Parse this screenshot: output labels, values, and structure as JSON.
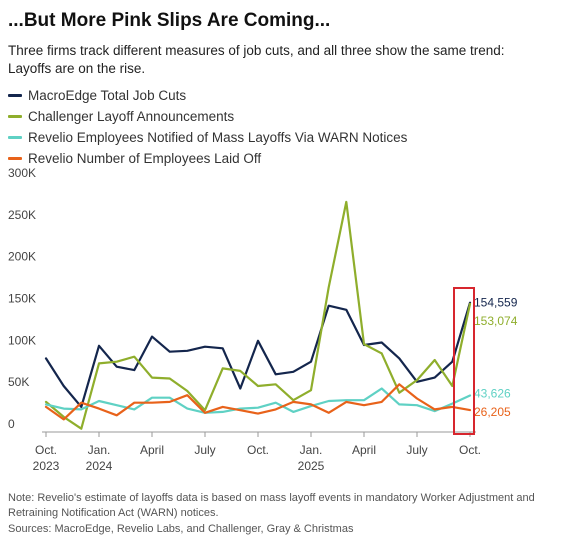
{
  "title": "...But More Pink Slips Are Coming...",
  "subtitle": "Three firms track different measures of job cuts, and all three show the same trend: Layoffs are on the rise.",
  "footnote": "Note: Revelio's estimate of layoffs data is based on mass layoff events in mandatory Worker Adjustment and Retraining Notification Act (WARN) notices.",
  "sources": "Sources: MacroEdge, Revelio Labs, and Challenger, Gray & Christmas",
  "chart_data": {
    "type": "line",
    "x": [
      "2023-10",
      "2023-11",
      "2023-12",
      "2024-01",
      "2024-02",
      "2024-03",
      "2024-04",
      "2024-05",
      "2024-06",
      "2024-07",
      "2024-08",
      "2024-09",
      "2024-10",
      "2024-11",
      "2024-12",
      "2025-01",
      "2025-02",
      "2025-03",
      "2025-04",
      "2025-05",
      "2025-06",
      "2025-07",
      "2025-08",
      "2025-09",
      "2025-10"
    ],
    "ylim": [
      0,
      300000
    ],
    "yticks": [
      0,
      50000,
      100000,
      150000,
      200000,
      250000,
      300000
    ],
    "ytick_labels": [
      "0",
      "50K",
      "100K",
      "150K",
      "200K",
      "250K",
      "300K"
    ],
    "xticks": [
      {
        "x": "2023-10",
        "lines": [
          "Oct.",
          "2023"
        ]
      },
      {
        "x": "2024-01",
        "lines": [
          "Jan.",
          "2024"
        ]
      },
      {
        "x": "2024-04",
        "lines": [
          "April"
        ]
      },
      {
        "x": "2024-07",
        "lines": [
          "July"
        ]
      },
      {
        "x": "2024-10",
        "lines": [
          "Oct."
        ]
      },
      {
        "x": "2025-01",
        "lines": [
          "Jan.",
          "2025"
        ]
      },
      {
        "x": "2025-04",
        "lines": [
          "April"
        ]
      },
      {
        "x": "2025-07",
        "lines": [
          "July"
        ]
      },
      {
        "x": "2025-10",
        "lines": [
          "Oct."
        ]
      }
    ],
    "grid": false,
    "legend_position": "top-left",
    "highlight": {
      "x": "2025-10",
      "color": "#d7262e"
    },
    "series": [
      {
        "name": "MacroEdge Total Job Cuts",
        "color": "#14264d",
        "values": [
          88000,
          55000,
          30000,
          103000,
          78000,
          74000,
          114000,
          96000,
          97000,
          102000,
          100000,
          52000,
          109000,
          69000,
          72000,
          84000,
          151000,
          146000,
          104000,
          107000,
          88000,
          60000,
          65000,
          84000,
          154559
        ],
        "end_label": "154,559"
      },
      {
        "name": "Challenger Layoff Announcements",
        "color": "#8fae2c",
        "values": [
          36000,
          18000,
          4000,
          82000,
          84000,
          90000,
          65000,
          64000,
          49000,
          26000,
          76000,
          73000,
          55000,
          57000,
          38000,
          50000,
          173000,
          275000,
          105000,
          94000,
          47000,
          62000,
          86000,
          55000,
          153074
        ],
        "end_label": "153,074"
      },
      {
        "name": "Revelio Employees Notified of Mass Layoffs Via WARN Notices",
        "color": "#5fd1c4",
        "values": [
          33000,
          28000,
          27000,
          37000,
          32000,
          27000,
          41000,
          41000,
          28000,
          23000,
          24000,
          28000,
          29000,
          35000,
          24000,
          31000,
          37000,
          38000,
          38000,
          52000,
          33000,
          32000,
          25000,
          34000,
          43626
        ],
        "end_label": "43,626"
      },
      {
        "name": "Revelio Number of Employees Laid Off",
        "color": "#e8621a",
        "values": [
          30000,
          15000,
          35000,
          28000,
          20000,
          35000,
          35000,
          36000,
          44000,
          23000,
          30000,
          26000,
          22000,
          27000,
          36000,
          33000,
          23000,
          36000,
          32000,
          36000,
          57000,
          40000,
          27000,
          30000,
          26205
        ],
        "end_label": "26,205"
      }
    ]
  }
}
